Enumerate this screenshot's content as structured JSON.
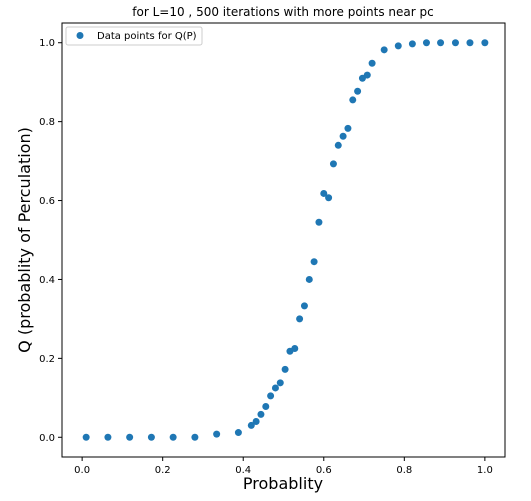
{
  "chart_data": {
    "type": "scatter",
    "title": "for L=10 , 500 iterations with more points near pc",
    "xlabel": "Probablity",
    "ylabel": "Q (probablity of Perculation)",
    "xlim": [
      -0.05,
      1.05
    ],
    "ylim": [
      -0.05,
      1.05
    ],
    "xticks": [
      "0.0",
      "0.2",
      "0.4",
      "0.6",
      "0.8",
      "1.0"
    ],
    "yticks": [
      "0.0",
      "0.2",
      "0.4",
      "0.6",
      "0.8",
      "1.0"
    ],
    "grid": false,
    "legend_position": "top-left",
    "marker_color": "#1f77b4",
    "series": [
      {
        "name": "Data points for Q(P)",
        "x": [
          0.01,
          0.064,
          0.118,
          0.172,
          0.226,
          0.28,
          0.334,
          0.388,
          0.42,
          0.432,
          0.444,
          0.456,
          0.468,
          0.48,
          0.492,
          0.504,
          0.516,
          0.528,
          0.54,
          0.552,
          0.564,
          0.576,
          0.588,
          0.6,
          0.612,
          0.624,
          0.636,
          0.648,
          0.66,
          0.672,
          0.684,
          0.696,
          0.708,
          0.72,
          0.75,
          0.785,
          0.82,
          0.855,
          0.89,
          0.927,
          0.963,
          1.0
        ],
        "y": [
          0.0,
          0.0,
          0.0,
          0.0,
          0.0,
          0.0,
          0.008,
          0.012,
          0.03,
          0.04,
          0.058,
          0.078,
          0.105,
          0.125,
          0.138,
          0.172,
          0.218,
          0.225,
          0.3,
          0.333,
          0.4,
          0.445,
          0.545,
          0.618,
          0.607,
          0.693,
          0.74,
          0.763,
          0.783,
          0.855,
          0.877,
          0.91,
          0.918,
          0.948,
          0.982,
          0.992,
          0.997,
          1.0,
          1.0,
          1.0,
          1.0,
          1.0
        ]
      }
    ]
  }
}
